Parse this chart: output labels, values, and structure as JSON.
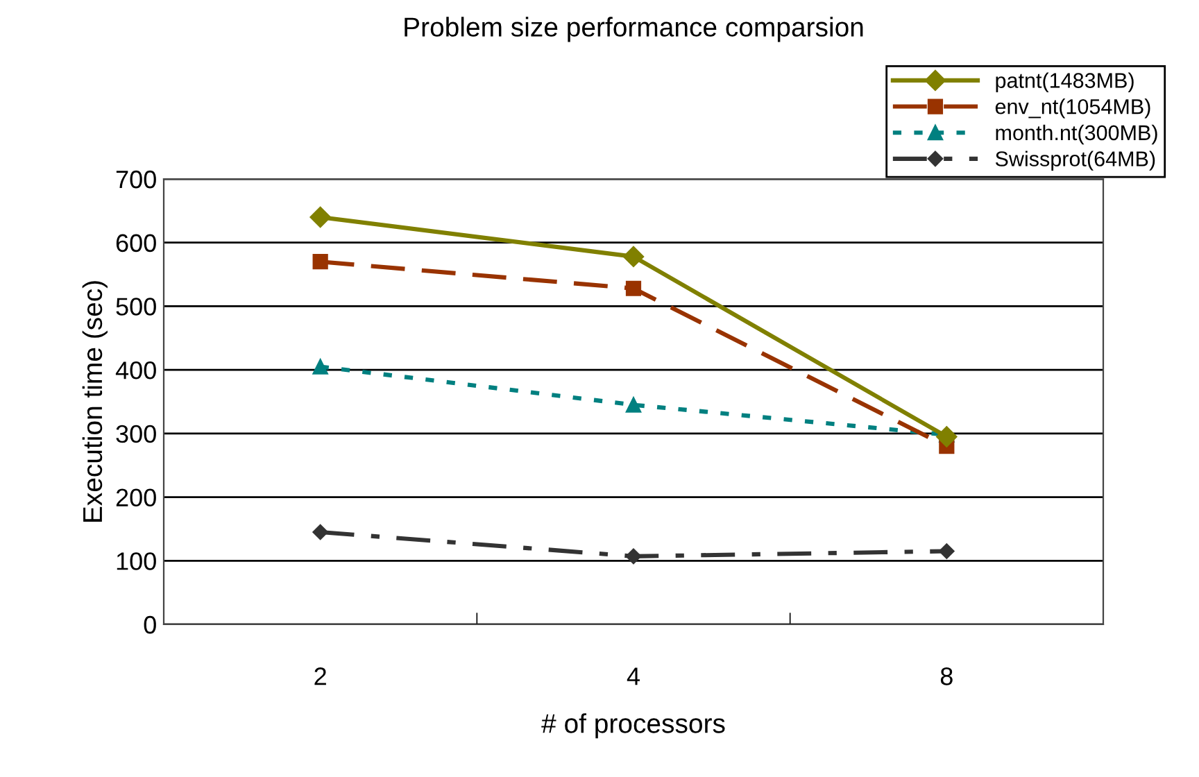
{
  "chart_data": {
    "type": "line",
    "title": "Problem size performance comparsion",
    "xlabel": "# of processors",
    "ylabel": "Execution time (sec)",
    "categories": [
      "2",
      "4",
      "8"
    ],
    "series": [
      {
        "name": "patnt(1483MB)",
        "color": "#808000",
        "values": [
          640,
          578,
          295
        ],
        "marker": "diamond",
        "line_style": "solid"
      },
      {
        "name": "env_nt(1054MB)",
        "color": "#993300",
        "values": [
          570,
          528,
          280
        ],
        "marker": "square",
        "line_style": "dashed"
      },
      {
        "name": "month.nt(300MB)",
        "color": "#008080",
        "values": [
          405,
          345,
          298
        ],
        "marker": "triangle",
        "line_style": "dotted"
      },
      {
        "name": "Swissprot(64MB)",
        "color": "#333333",
        "values": [
          145,
          107,
          115
        ],
        "marker": "diamond",
        "line_style": "dashdot"
      }
    ],
    "ylim": [
      0,
      700
    ],
    "yticks": [
      0,
      100,
      200,
      300,
      400,
      500,
      600,
      700
    ],
    "grid": "y",
    "legend": "top right"
  }
}
